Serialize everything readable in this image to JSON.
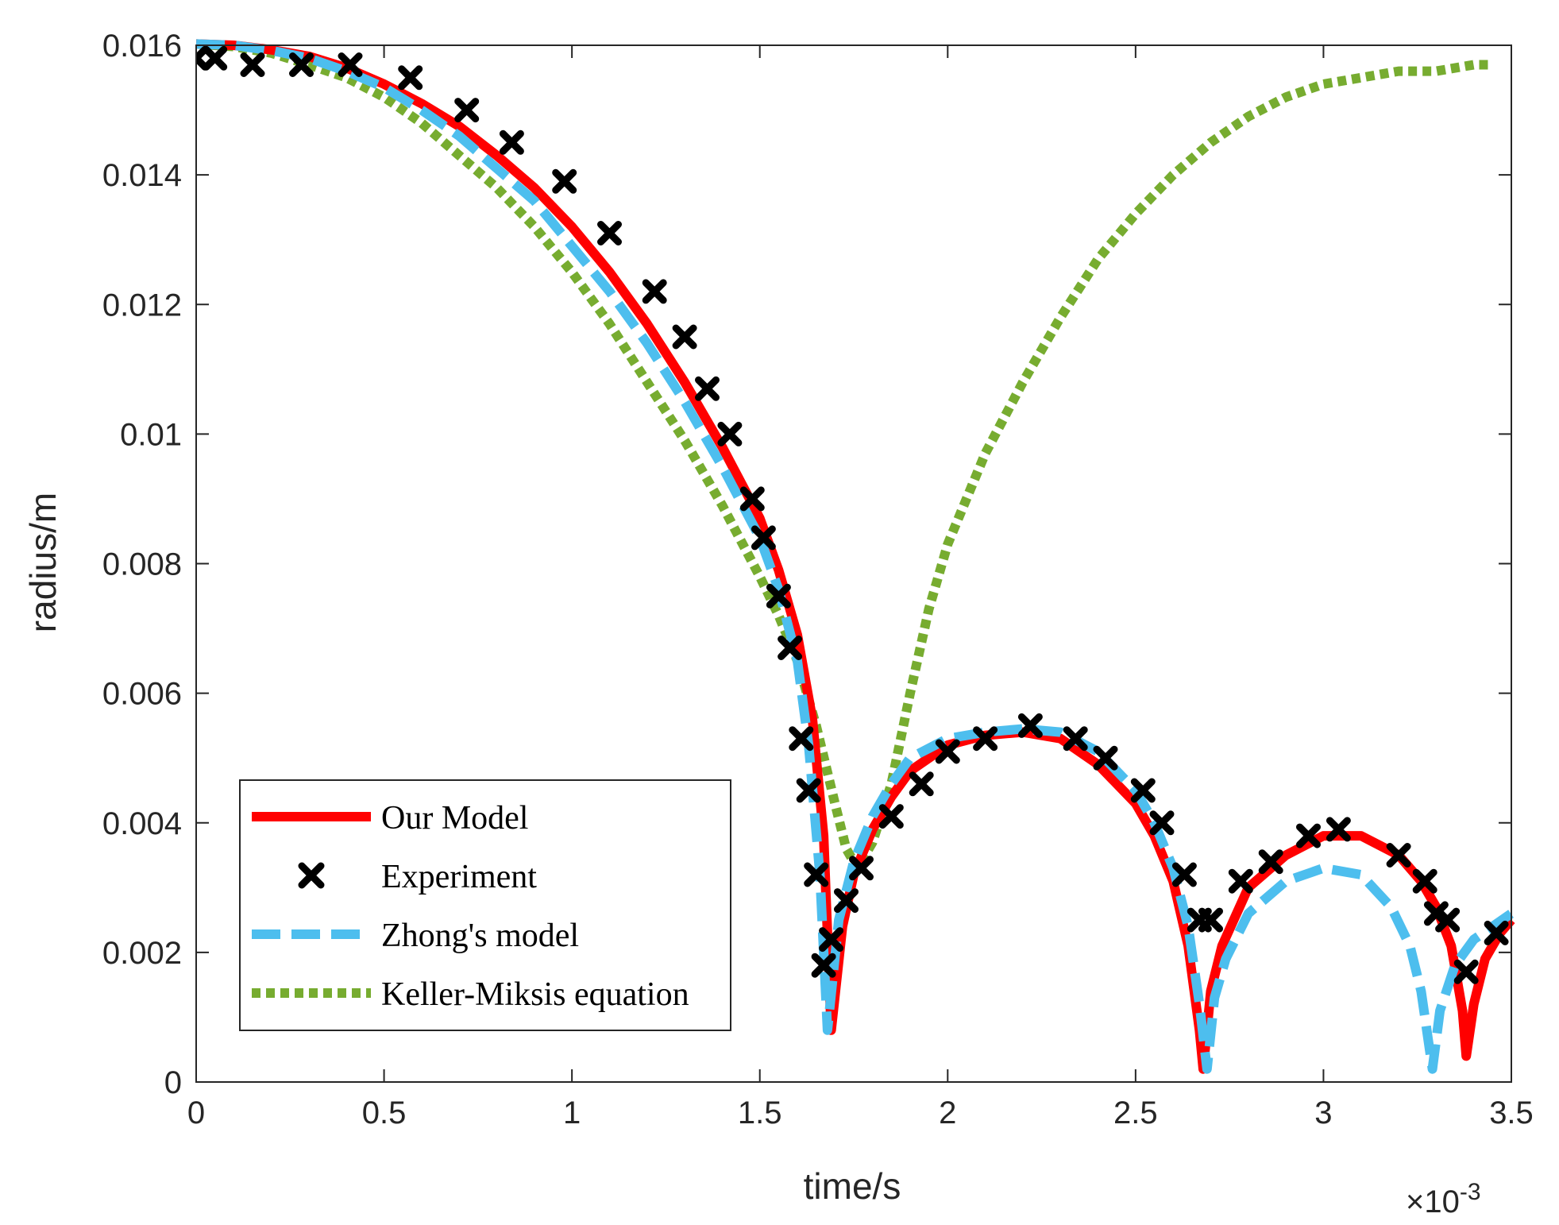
{
  "chart_data": {
    "type": "line",
    "title": "",
    "xlabel": "time/s",
    "ylabel": "radius/m",
    "x_multiplier_text": "×10",
    "x_multiplier_exp": "-3",
    "xlim": [
      0,
      3.5
    ],
    "ylim": [
      0,
      0.016
    ],
    "x_ticks": [
      0,
      0.5,
      1,
      1.5,
      2,
      2.5,
      3,
      3.5
    ],
    "x_tick_labels": [
      "0",
      "0.5",
      "1",
      "1.5",
      "2",
      "2.5",
      "3",
      "3.5"
    ],
    "y_ticks": [
      0,
      0.002,
      0.004,
      0.006,
      0.008,
      0.01,
      0.012,
      0.014,
      0.016
    ],
    "y_tick_labels": [
      "0",
      "0.002",
      "0.004",
      "0.006",
      "0.008",
      "0.01",
      "0.012",
      "0.014",
      "0.016"
    ],
    "grid": false,
    "legend_position": "bottom-left",
    "series": [
      {
        "name": "Our Model",
        "style": "solid",
        "color": "#ff0000",
        "x": [
          0,
          0.1,
          0.2,
          0.3,
          0.4,
          0.5,
          0.6,
          0.7,
          0.8,
          0.9,
          1.0,
          1.1,
          1.2,
          1.3,
          1.4,
          1.5,
          1.55,
          1.6,
          1.64,
          1.67,
          1.69,
          1.72,
          1.75,
          1.8,
          1.85,
          1.9,
          2.0,
          2.1,
          2.2,
          2.3,
          2.4,
          2.5,
          2.55,
          2.6,
          2.64,
          2.67,
          2.68,
          2.7,
          2.73,
          2.8,
          2.9,
          3.0,
          3.1,
          3.2,
          3.26,
          3.3,
          3.34,
          3.37,
          3.38,
          3.4,
          3.43,
          3.47,
          3.5
        ],
        "y": [
          0.01602,
          0.016,
          0.01593,
          0.01583,
          0.01565,
          0.0154,
          0.0151,
          0.01475,
          0.0143,
          0.0138,
          0.0132,
          0.0125,
          0.0117,
          0.0108,
          0.0098,
          0.0087,
          0.0079,
          0.0069,
          0.0056,
          0.0038,
          0.0008,
          0.0024,
          0.0032,
          0.0039,
          0.0044,
          0.0048,
          0.0052,
          0.00535,
          0.0054,
          0.0053,
          0.0049,
          0.0043,
          0.0038,
          0.0031,
          0.0021,
          0.0008,
          0.0002,
          0.0014,
          0.0021,
          0.003,
          0.0035,
          0.0038,
          0.0038,
          0.0035,
          0.0031,
          0.0027,
          0.0021,
          0.0011,
          0.0004,
          0.0012,
          0.0019,
          0.0023,
          0.0025
        ]
      },
      {
        "name": "Experiment",
        "style": "marker",
        "color": "#000000",
        "x": [
          0,
          0.05,
          0.15,
          0.28,
          0.41,
          0.57,
          0.72,
          0.84,
          0.98,
          1.1,
          1.22,
          1.3,
          1.36,
          1.42,
          1.48,
          1.51,
          1.55,
          1.58,
          1.61,
          1.63,
          1.65,
          1.67,
          1.69,
          1.73,
          1.77,
          1.85,
          1.93,
          2.0,
          2.1,
          2.22,
          2.34,
          2.42,
          2.52,
          2.57,
          2.63,
          2.67,
          2.7,
          2.78,
          2.86,
          2.96,
          3.04,
          3.2,
          3.27,
          3.3,
          3.33,
          3.38,
          3.46
        ],
        "y": [
          0.0158,
          0.0158,
          0.0157,
          0.0157,
          0.0157,
          0.0155,
          0.015,
          0.0145,
          0.0139,
          0.0131,
          0.0122,
          0.0115,
          0.0107,
          0.01,
          0.009,
          0.0084,
          0.0075,
          0.0067,
          0.0053,
          0.0045,
          0.0032,
          0.0018,
          0.0022,
          0.0028,
          0.0033,
          0.0041,
          0.0046,
          0.0051,
          0.0053,
          0.0055,
          0.0053,
          0.005,
          0.0045,
          0.004,
          0.0032,
          0.0025,
          0.0025,
          0.0031,
          0.0034,
          0.0038,
          0.0039,
          0.0035,
          0.0031,
          0.0026,
          0.0025,
          0.0017,
          0.0023
        ]
      },
      {
        "name": "Zhong's model",
        "style": "dashed",
        "color": "#4dbeee",
        "x": [
          0,
          0.1,
          0.2,
          0.3,
          0.4,
          0.5,
          0.6,
          0.7,
          0.8,
          0.9,
          1.0,
          1.1,
          1.2,
          1.3,
          1.4,
          1.5,
          1.55,
          1.6,
          1.63,
          1.66,
          1.68,
          1.71,
          1.75,
          1.8,
          1.85,
          1.9,
          2.0,
          2.1,
          2.2,
          2.3,
          2.4,
          2.5,
          2.55,
          2.6,
          2.64,
          2.67,
          2.69,
          2.71,
          2.74,
          2.8,
          2.9,
          3.0,
          3.1,
          3.18,
          3.23,
          3.26,
          3.28,
          3.29,
          3.31,
          3.35,
          3.4,
          3.45,
          3.5
        ],
        "y": [
          0.01602,
          0.016,
          0.01592,
          0.0158,
          0.0156,
          0.01535,
          0.015,
          0.0146,
          0.0141,
          0.0136,
          0.0129,
          0.0122,
          0.0114,
          0.0105,
          0.0095,
          0.0084,
          0.0076,
          0.0065,
          0.0052,
          0.0032,
          0.0008,
          0.0025,
          0.0034,
          0.0041,
          0.0046,
          0.005,
          0.0053,
          0.0054,
          0.00545,
          0.0054,
          0.0051,
          0.0045,
          0.004,
          0.0033,
          0.0024,
          0.0012,
          0.0002,
          0.0013,
          0.0019,
          0.0026,
          0.0031,
          0.0033,
          0.0032,
          0.0027,
          0.0021,
          0.0014,
          0.0006,
          0.0002,
          0.0011,
          0.0018,
          0.0022,
          0.0024,
          0.0026
        ]
      },
      {
        "name": "Keller-Miksis equation",
        "style": "dotted",
        "color": "#77ac30",
        "x": [
          0,
          0.1,
          0.2,
          0.3,
          0.4,
          0.5,
          0.6,
          0.7,
          0.8,
          0.9,
          1.0,
          1.1,
          1.2,
          1.3,
          1.4,
          1.5,
          1.55,
          1.6,
          1.65,
          1.7,
          1.73,
          1.76,
          1.8,
          1.85,
          1.9,
          1.95,
          2.0,
          2.1,
          2.2,
          2.3,
          2.4,
          2.5,
          2.6,
          2.7,
          2.8,
          2.9,
          3.0,
          3.1,
          3.2,
          3.3,
          3.4,
          3.44
        ],
        "y": [
          0.01602,
          0.01598,
          0.01588,
          0.0157,
          0.0155,
          0.0152,
          0.0148,
          0.0143,
          0.0138,
          0.0132,
          0.0125,
          0.0117,
          0.0108,
          0.0099,
          0.0089,
          0.0078,
          0.0072,
          0.0065,
          0.0055,
          0.0043,
          0.0036,
          0.0033,
          0.0037,
          0.0046,
          0.006,
          0.0073,
          0.0083,
          0.0097,
          0.0108,
          0.0118,
          0.0127,
          0.0134,
          0.014,
          0.0145,
          0.0149,
          0.0152,
          0.0154,
          0.0155,
          0.0156,
          0.0156,
          0.0157,
          0.0157
        ]
      }
    ]
  }
}
